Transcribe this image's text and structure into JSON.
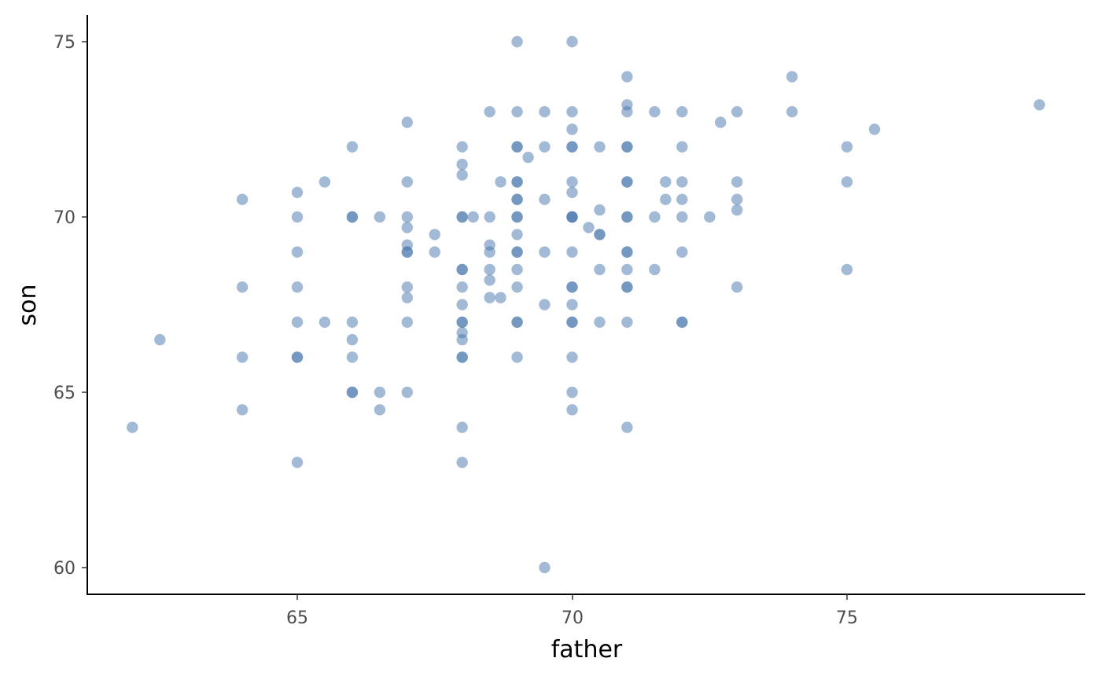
{
  "chart_data": {
    "type": "scatter",
    "title": "",
    "xlabel": "father",
    "ylabel": "son",
    "xlim": [
      61.3,
      79.5
    ],
    "ylim": [
      59.25,
      75.75
    ],
    "x_ticks": [
      65,
      70,
      75
    ],
    "y_ticks": [
      60,
      65,
      70,
      75
    ],
    "x_tick_labels": [
      "65",
      "70",
      "75"
    ],
    "y_tick_labels": [
      "60",
      "65",
      "70",
      "75"
    ],
    "grid": false,
    "point_color": "#4575ab",
    "point_alpha": 0.5,
    "points": [
      [
        62,
        64
      ],
      [
        62.5,
        66.5
      ],
      [
        64,
        70.5
      ],
      [
        64,
        68
      ],
      [
        64,
        66
      ],
      [
        64,
        64.5
      ],
      [
        65,
        70.7
      ],
      [
        65,
        70
      ],
      [
        65,
        69
      ],
      [
        65,
        68
      ],
      [
        65,
        67
      ],
      [
        65,
        66
      ],
      [
        65,
        66
      ],
      [
        65,
        63
      ],
      [
        65.5,
        71
      ],
      [
        65.5,
        67
      ],
      [
        66,
        72
      ],
      [
        66,
        70
      ],
      [
        66,
        70
      ],
      [
        66,
        67
      ],
      [
        66,
        66.5
      ],
      [
        66,
        66
      ],
      [
        66,
        65
      ],
      [
        66,
        65
      ],
      [
        66.5,
        70
      ],
      [
        66.5,
        65
      ],
      [
        66.5,
        64.5
      ],
      [
        67,
        72.7
      ],
      [
        67,
        71
      ],
      [
        67,
        70
      ],
      [
        67,
        69.7
      ],
      [
        67,
        69.2
      ],
      [
        67,
        69
      ],
      [
        67,
        69
      ],
      [
        67,
        68
      ],
      [
        67,
        67.7
      ],
      [
        67,
        67
      ],
      [
        67,
        65
      ],
      [
        67.5,
        69.5
      ],
      [
        67.5,
        69
      ],
      [
        68,
        72
      ],
      [
        68,
        71.5
      ],
      [
        68,
        71.2
      ],
      [
        68,
        70
      ],
      [
        68,
        70
      ],
      [
        68,
        68.5
      ],
      [
        68,
        68.5
      ],
      [
        68,
        68
      ],
      [
        68,
        67.5
      ],
      [
        68,
        67
      ],
      [
        68,
        67
      ],
      [
        68,
        66.7
      ],
      [
        68,
        66.5
      ],
      [
        68,
        66
      ],
      [
        68,
        66
      ],
      [
        68,
        64
      ],
      [
        68,
        63
      ],
      [
        68.2,
        70
      ],
      [
        68.5,
        73
      ],
      [
        68.5,
        70
      ],
      [
        68.5,
        69.2
      ],
      [
        68.5,
        69
      ],
      [
        68.5,
        68.5
      ],
      [
        68.5,
        68.2
      ],
      [
        68.5,
        67.7
      ],
      [
        68.7,
        71
      ],
      [
        68.7,
        67.7
      ],
      [
        69,
        75
      ],
      [
        69,
        73
      ],
      [
        69,
        72
      ],
      [
        69,
        72
      ],
      [
        69,
        71
      ],
      [
        69,
        71
      ],
      [
        69,
        70.5
      ],
      [
        69,
        70.5
      ],
      [
        69,
        70
      ],
      [
        69,
        70
      ],
      [
        69,
        69.5
      ],
      [
        69,
        69
      ],
      [
        69,
        69
      ],
      [
        69,
        68.5
      ],
      [
        69,
        68
      ],
      [
        69,
        67
      ],
      [
        69,
        67
      ],
      [
        69,
        66
      ],
      [
        69.2,
        71.7
      ],
      [
        69.5,
        73
      ],
      [
        69.5,
        72
      ],
      [
        69.5,
        70.5
      ],
      [
        69.5,
        69
      ],
      [
        69.5,
        67.5
      ],
      [
        69.5,
        60
      ],
      [
        70,
        75
      ],
      [
        70,
        73
      ],
      [
        70,
        72.5
      ],
      [
        70,
        72
      ],
      [
        70,
        72
      ],
      [
        70,
        71
      ],
      [
        70,
        70.7
      ],
      [
        70,
        70
      ],
      [
        70,
        70
      ],
      [
        70,
        70
      ],
      [
        70,
        69
      ],
      [
        70,
        68
      ],
      [
        70,
        68
      ],
      [
        70,
        67.5
      ],
      [
        70,
        67
      ],
      [
        70,
        67
      ],
      [
        70,
        66
      ],
      [
        70,
        65
      ],
      [
        70,
        64.5
      ],
      [
        70.3,
        69.7
      ],
      [
        70.5,
        72
      ],
      [
        70.5,
        70.2
      ],
      [
        70.5,
        69.5
      ],
      [
        70.5,
        69.5
      ],
      [
        70.5,
        68.5
      ],
      [
        70.5,
        67
      ],
      [
        71,
        74
      ],
      [
        71,
        73.2
      ],
      [
        71,
        73
      ],
      [
        71,
        72
      ],
      [
        71,
        72
      ],
      [
        71,
        71
      ],
      [
        71,
        71
      ],
      [
        71,
        70
      ],
      [
        71,
        70
      ],
      [
        71,
        69
      ],
      [
        71,
        69
      ],
      [
        71,
        68.5
      ],
      [
        71,
        68
      ],
      [
        71,
        68
      ],
      [
        71,
        67
      ],
      [
        71,
        64
      ],
      [
        71.5,
        73
      ],
      [
        71.5,
        70
      ],
      [
        71.5,
        68.5
      ],
      [
        71.7,
        71
      ],
      [
        71.7,
        70.5
      ],
      [
        72,
        73
      ],
      [
        72,
        72
      ],
      [
        72,
        71
      ],
      [
        72,
        70.5
      ],
      [
        72,
        70
      ],
      [
        72,
        69
      ],
      [
        72,
        67
      ],
      [
        72,
        67
      ],
      [
        72.5,
        70
      ],
      [
        72.7,
        72.7
      ],
      [
        73,
        73
      ],
      [
        73,
        71
      ],
      [
        73,
        70.5
      ],
      [
        73,
        70.2
      ],
      [
        73,
        68
      ],
      [
        74,
        74
      ],
      [
        74,
        73
      ],
      [
        75,
        72
      ],
      [
        75,
        71
      ],
      [
        75,
        68.5
      ],
      [
        75.5,
        72.5
      ],
      [
        78.5,
        73.2
      ]
    ]
  }
}
